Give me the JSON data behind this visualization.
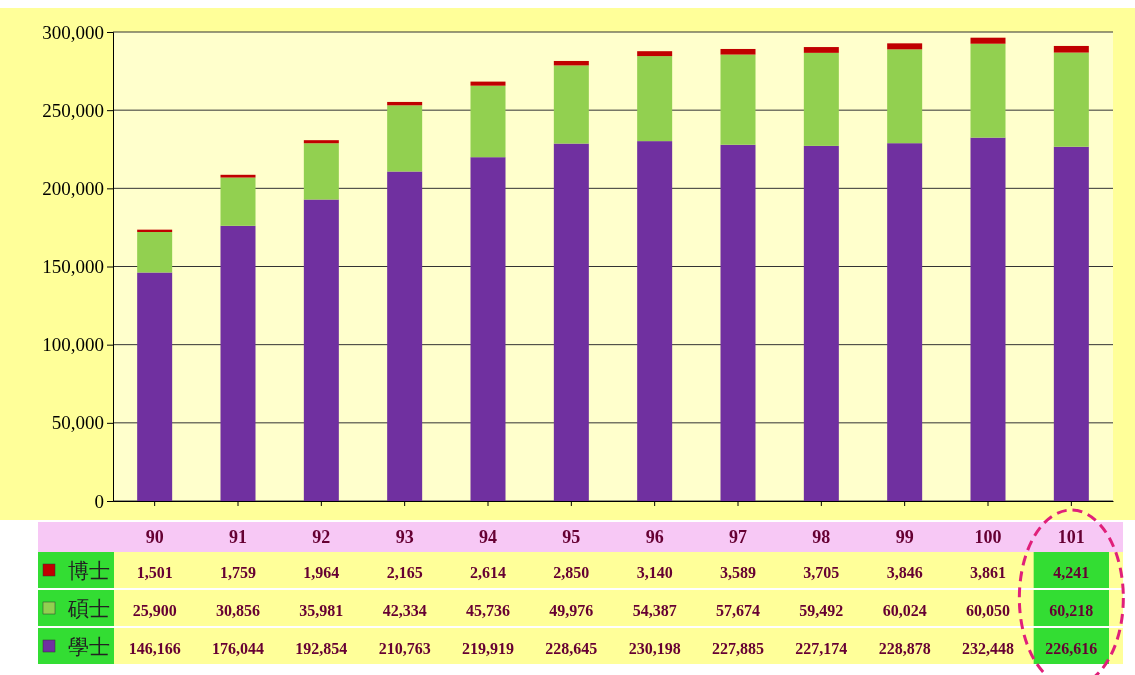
{
  "chart_data": {
    "type": "bar",
    "stacked": true,
    "categories": [
      "90",
      "91",
      "92",
      "93",
      "94",
      "95",
      "96",
      "97",
      "98",
      "99",
      "100",
      "101"
    ],
    "series": [
      {
        "name": "學士",
        "color": "#7030a0",
        "values": [
          146166,
          176044,
          192854,
          210763,
          219919,
          228645,
          230198,
          227885,
          227174,
          228878,
          232448,
          226616
        ],
        "value_labels": [
          "146,166",
          "176,044",
          "192,854",
          "210,763",
          "219,919",
          "228,645",
          "230,198",
          "227,885",
          "227,174",
          "228,878",
          "232,448",
          "226,616"
        ]
      },
      {
        "name": "碩士",
        "color": "#92d050",
        "values": [
          25900,
          30856,
          35981,
          42334,
          45736,
          49976,
          54387,
          57674,
          59492,
          60024,
          60050,
          60218
        ],
        "value_labels": [
          "25,900",
          "30,856",
          "35,981",
          "42,334",
          "45,736",
          "49,976",
          "54,387",
          "57,674",
          "59,492",
          "60,024",
          "60,050",
          "60,218"
        ]
      },
      {
        "name": "博士",
        "color": "#c00000",
        "values": [
          1501,
          1759,
          1964,
          2165,
          2614,
          2850,
          3140,
          3589,
          3705,
          3846,
          3861,
          4241
        ],
        "value_labels": [
          "1,501",
          "1,759",
          "1,964",
          "2,165",
          "2,614",
          "2,850",
          "3,140",
          "3,589",
          "3,705",
          "3,846",
          "3,861",
          "4,241"
        ]
      }
    ],
    "ylim": [
      0,
      300000
    ],
    "yticks": [
      0,
      {
        "value": 50000,
        "label": "50,000"
      },
      {
        "value": 100000,
        "label": "100,000"
      },
      {
        "value": 150000,
        "label": "150,000"
      },
      {
        "value": 200000,
        "label": "200,000"
      },
      {
        "value": 250000,
        "label": "250,000"
      },
      {
        "value": 300000,
        "label": "300,000"
      }
    ],
    "grid": "y",
    "legend": "bottom left"
  }
}
